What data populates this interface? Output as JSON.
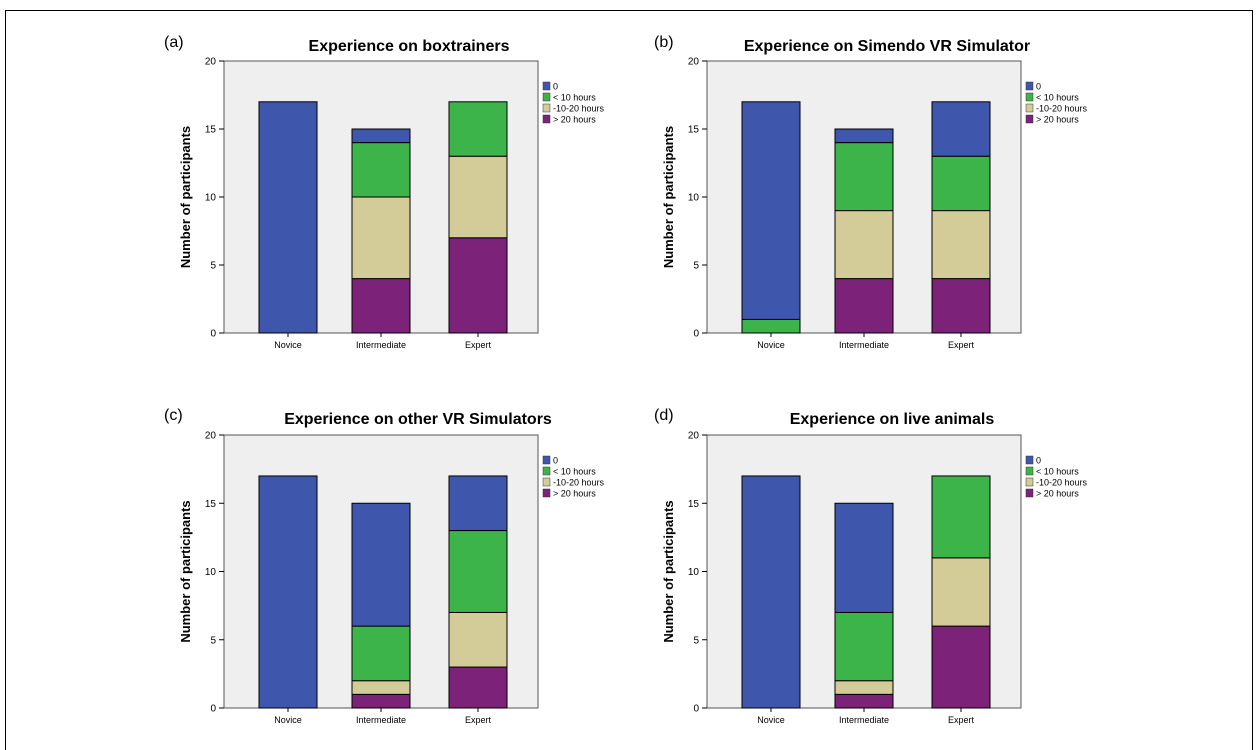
{
  "chart_data": [
    {
      "type": "bar",
      "stacked": true,
      "panel_label": "(a)",
      "title": "Experience on boxtrainers",
      "ylabel": "Number of participants",
      "xlabel": "",
      "ylim": [
        0,
        20
      ],
      "yticks": [
        0,
        5,
        10,
        15,
        20
      ],
      "categories": [
        "Novice",
        "Intermediate",
        "Expert"
      ],
      "series": [
        {
          "name": "> 20 hours",
          "values": [
            0,
            4,
            7
          ]
        },
        {
          "name": "-10-20 hours",
          "values": [
            0,
            6,
            6
          ]
        },
        {
          "name": "< 10 hours",
          "values": [
            0,
            4,
            4
          ]
        },
        {
          "name": "0",
          "values": [
            17,
            1,
            0
          ]
        }
      ],
      "legend_position": "top-right"
    },
    {
      "type": "bar",
      "stacked": true,
      "panel_label": "(b)",
      "title": "Experience on Simendo VR Simulator",
      "ylabel": "Number of participants",
      "xlabel": "",
      "ylim": [
        0,
        20
      ],
      "yticks": [
        0,
        5,
        10,
        15,
        20
      ],
      "categories": [
        "Novice",
        "Intermediate",
        "Expert"
      ],
      "series": [
        {
          "name": "> 20 hours",
          "values": [
            0,
            4,
            4
          ]
        },
        {
          "name": "-10-20 hours",
          "values": [
            0,
            5,
            5
          ]
        },
        {
          "name": "< 10 hours",
          "values": [
            1,
            5,
            4
          ]
        },
        {
          "name": "0",
          "values": [
            16,
            1,
            4
          ]
        }
      ],
      "legend_position": "top-right"
    },
    {
      "type": "bar",
      "stacked": true,
      "panel_label": "(c)",
      "title": "Experience on other VR Simulators",
      "ylabel": "Number of participants",
      "xlabel": "",
      "ylim": [
        0,
        20
      ],
      "yticks": [
        0,
        5,
        10,
        15,
        20
      ],
      "categories": [
        "Novice",
        "Intermediate",
        "Expert"
      ],
      "series": [
        {
          "name": "> 20 hours",
          "values": [
            0,
            1,
            3
          ]
        },
        {
          "name": "-10-20 hours",
          "values": [
            0,
            1,
            4
          ]
        },
        {
          "name": "< 10 hours",
          "values": [
            0,
            4,
            6
          ]
        },
        {
          "name": "0",
          "values": [
            17,
            9,
            4
          ]
        }
      ],
      "legend_position": "top-right"
    },
    {
      "type": "bar",
      "stacked": true,
      "panel_label": "(d)",
      "title": "Experience on live animals",
      "ylabel": "Number of participants",
      "xlabel": "",
      "ylim": [
        0,
        20
      ],
      "yticks": [
        0,
        5,
        10,
        15,
        20
      ],
      "categories": [
        "Novice",
        "Intermediate",
        "Expert"
      ],
      "series": [
        {
          "name": "> 20 hours",
          "values": [
            0,
            1,
            6
          ]
        },
        {
          "name": "-10-20 hours",
          "values": [
            0,
            1,
            5
          ]
        },
        {
          "name": "< 10 hours",
          "values": [
            0,
            5,
            6
          ]
        },
        {
          "name": "0",
          "values": [
            17,
            8,
            0
          ]
        }
      ],
      "legend_position": "top-right"
    }
  ],
  "legend": [
    {
      "name": "0",
      "color": "#3f56ad"
    },
    {
      "name": "< 10 hours",
      "color": "#3cb44a"
    },
    {
      "name": "-10-20 hours",
      "color": "#d4cc98"
    },
    {
      "name": "> 20 hours",
      "color": "#7c2278"
    }
  ],
  "colors": {
    "plot_background": "#efefef",
    "0": "#3f56ad",
    "< 10 hours": "#3cb44a",
    "-10-20 hours": "#d4cc98",
    "> 20 hours": "#7c2278"
  }
}
